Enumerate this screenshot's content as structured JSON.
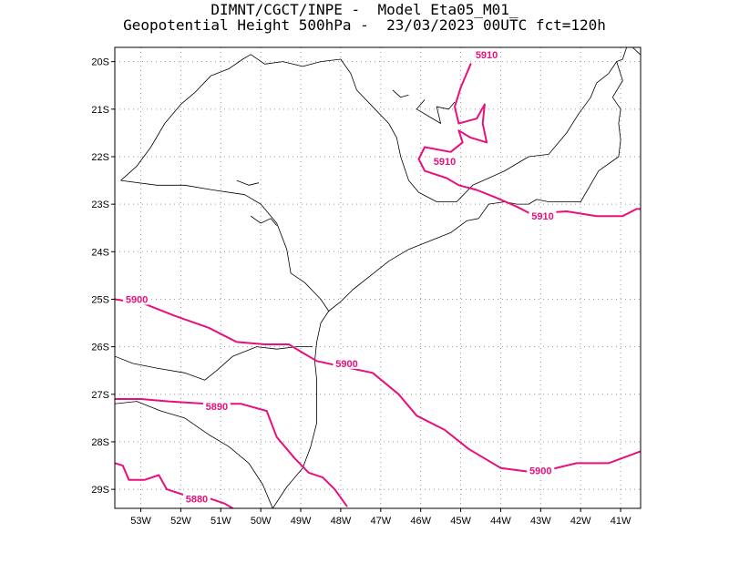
{
  "header": {
    "line1": "DIMNT/CGCT/INPE -  Model Eta05_M01_",
    "line2": "Geopotential Height 500hPa -  23/03/2023 00UTC fct=120h"
  },
  "map": {
    "lon_range": [
      -53.65,
      -40.5
    ],
    "lat_range": [
      -29.4,
      -19.7
    ],
    "lat_labels": [
      "20S",
      "21S",
      "22S",
      "23S",
      "24S",
      "25S",
      "26S",
      "27S",
      "28S",
      "29S"
    ],
    "lon_labels": [
      "53W",
      "52W",
      "51W",
      "50W",
      "49W",
      "48W",
      "47W",
      "46W",
      "45W",
      "44W",
      "43W",
      "42W",
      "41W"
    ],
    "gridlines": "dotted",
    "colors": {
      "contour": "#e8107a",
      "boundary": "#000000",
      "grid": "#9a9a9a"
    }
  },
  "contours": [
    {
      "id": "c5910-north",
      "value": 5910,
      "label": "5910",
      "lonlat": [
        [
          -44.75,
          -20.05
        ],
        [
          -45.0,
          -20.55
        ],
        [
          -45.15,
          -20.95
        ],
        [
          -45.05,
          -21.3
        ],
        [
          -44.6,
          -21.2
        ],
        [
          -44.4,
          -20.9
        ],
        [
          -44.45,
          -21.3
        ],
        [
          -44.35,
          -21.7
        ],
        [
          -44.75,
          -21.6
        ],
        [
          -45.05,
          -21.45
        ],
        [
          -44.95,
          -21.7
        ],
        [
          -45.25,
          -21.9
        ],
        [
          -45.9,
          -21.8
        ]
      ]
    },
    {
      "id": "c5910-south",
      "value": 5910,
      "label": "5910",
      "lonlat": [
        [
          -45.9,
          -21.8
        ],
        [
          -46.05,
          -22.05
        ],
        [
          -45.9,
          -22.3
        ],
        [
          -45.35,
          -22.45
        ],
        [
          -45.05,
          -22.6
        ],
        [
          -44.6,
          -22.7
        ],
        [
          -44.15,
          -22.85
        ],
        [
          -43.6,
          -23.05
        ],
        [
          -43.25,
          -23.2
        ],
        [
          -42.35,
          -23.15
        ],
        [
          -41.6,
          -23.25
        ],
        [
          -40.95,
          -23.25
        ],
        [
          -40.6,
          -23.1
        ],
        [
          -40.5,
          -23.1
        ]
      ]
    },
    {
      "id": "c5900-south",
      "value": 5900,
      "label": "5900",
      "lonlat": [
        [
          -53.65,
          -25.0
        ],
        [
          -52.9,
          -25.1
        ],
        [
          -52.15,
          -25.35
        ],
        [
          -51.3,
          -25.6
        ],
        [
          -50.6,
          -25.9
        ],
        [
          -49.9,
          -25.95
        ],
        [
          -49.3,
          -25.95
        ],
        [
          -49.0,
          -26.1
        ],
        [
          -48.6,
          -26.3
        ],
        [
          -48.05,
          -26.4
        ],
        [
          -47.2,
          -26.55
        ],
        [
          -46.55,
          -27.0
        ],
        [
          -46.1,
          -27.45
        ],
        [
          -45.4,
          -27.75
        ],
        [
          -44.8,
          -28.15
        ],
        [
          -44.0,
          -28.55
        ],
        [
          -43.1,
          -28.65
        ],
        [
          -42.1,
          -28.45
        ],
        [
          -41.3,
          -28.45
        ],
        [
          -40.5,
          -28.2
        ]
      ]
    },
    {
      "id": "c5890",
      "value": 5890,
      "label": "5890",
      "lonlat": [
        [
          -53.65,
          -27.1
        ],
        [
          -53.0,
          -27.1
        ],
        [
          -52.3,
          -27.15
        ],
        [
          -51.35,
          -27.2
        ],
        [
          -50.5,
          -27.2
        ],
        [
          -49.85,
          -27.35
        ],
        [
          -49.6,
          -27.9
        ],
        [
          -49.15,
          -28.35
        ],
        [
          -48.8,
          -28.65
        ],
        [
          -48.45,
          -28.75
        ],
        [
          -48.15,
          -29.0
        ],
        [
          -47.85,
          -29.35
        ]
      ]
    },
    {
      "id": "c5880",
      "value": 5880,
      "label": "5880",
      "lonlat": [
        [
          -53.65,
          -28.45
        ],
        [
          -53.45,
          -28.5
        ],
        [
          -53.3,
          -28.8
        ],
        [
          -52.9,
          -28.8
        ],
        [
          -52.55,
          -28.7
        ],
        [
          -52.35,
          -29.0
        ],
        [
          -51.8,
          -29.15
        ],
        [
          -51.25,
          -29.2
        ],
        [
          -50.9,
          -29.3
        ],
        [
          -50.7,
          -29.4
        ]
      ]
    }
  ],
  "contour_labels": [
    {
      "text": "5910",
      "lon": -44.35,
      "lat": -19.85
    },
    {
      "text": "5910",
      "lon": -45.4,
      "lat": -22.1
    },
    {
      "text": "5910",
      "lon": -42.95,
      "lat": -23.25
    },
    {
      "text": "5900",
      "lon": -53.1,
      "lat": -25.0
    },
    {
      "text": "5900",
      "lon": -47.85,
      "lat": -26.35
    },
    {
      "text": "5900",
      "lon": -43.0,
      "lat": -28.6
    },
    {
      "text": "5890",
      "lon": -51.1,
      "lat": -27.25
    },
    {
      "text": "5880",
      "lon": -51.6,
      "lat": -29.2
    }
  ],
  "boundaries": [
    {
      "id": "sp-mg-west",
      "lonlat": [
        [
          -53.5,
          -22.5
        ],
        [
          -53.1,
          -22.2
        ],
        [
          -52.75,
          -21.8
        ],
        [
          -52.4,
          -21.3
        ],
        [
          -52.0,
          -20.9
        ],
        [
          -51.65,
          -20.65
        ],
        [
          -51.25,
          -20.3
        ],
        [
          -50.8,
          -20.15
        ],
        [
          -50.45,
          -19.95
        ],
        [
          -50.25,
          -19.85
        ],
        [
          -49.9,
          -20.05
        ],
        [
          -49.45,
          -20.0
        ],
        [
          -48.95,
          -20.1
        ],
        [
          -48.5,
          -20.0
        ],
        [
          -48.0,
          -19.95
        ],
        [
          -47.75,
          -20.25
        ],
        [
          -47.6,
          -20.6
        ],
        [
          -47.2,
          -20.95
        ],
        [
          -46.8,
          -21.3
        ],
        [
          -46.6,
          -21.6
        ],
        [
          -46.5,
          -22.0
        ],
        [
          -46.3,
          -22.5
        ],
        [
          -46.05,
          -22.75
        ],
        [
          -45.6,
          -22.95
        ],
        [
          -45.1,
          -22.95
        ]
      ]
    },
    {
      "id": "mg-rj",
      "lonlat": [
        [
          -45.1,
          -22.95
        ],
        [
          -44.7,
          -22.6
        ],
        [
          -44.3,
          -22.45
        ],
        [
          -43.9,
          -22.3
        ],
        [
          -43.3,
          -22.0
        ],
        [
          -42.8,
          -21.95
        ],
        [
          -42.35,
          -21.5
        ],
        [
          -42.05,
          -21.1
        ],
        [
          -41.75,
          -20.75
        ],
        [
          -41.6,
          -20.45
        ],
        [
          -41.3,
          -20.25
        ],
        [
          -41.1,
          -20.0
        ]
      ]
    },
    {
      "id": "es-border",
      "lonlat": [
        [
          -41.1,
          -20.0
        ],
        [
          -40.95,
          -20.4
        ],
        [
          -41.2,
          -20.75
        ],
        [
          -41.0,
          -21.0
        ],
        [
          -41.05,
          -21.3
        ]
      ]
    },
    {
      "id": "es-mg-north",
      "lonlat": [
        [
          -40.85,
          -19.7
        ],
        [
          -40.95,
          -19.95
        ],
        [
          -41.1,
          -20.0
        ]
      ]
    },
    {
      "id": "mg-ba",
      "lonlat": [
        [
          -40.7,
          -19.7
        ],
        [
          -40.45,
          -19.9
        ]
      ]
    },
    {
      "id": "rj-coast",
      "lonlat": [
        [
          -41.05,
          -21.3
        ],
        [
          -41.0,
          -21.65
        ],
        [
          -41.05,
          -22.0
        ],
        [
          -41.55,
          -22.3
        ],
        [
          -42.0,
          -22.95
        ],
        [
          -42.8,
          -22.95
        ],
        [
          -43.1,
          -22.9
        ],
        [
          -43.3,
          -23.0
        ],
        [
          -43.6,
          -23.0
        ],
        [
          -43.9,
          -22.95
        ],
        [
          -44.3,
          -23.0
        ],
        [
          -44.55,
          -23.3
        ]
      ]
    },
    {
      "id": "sp-coast",
      "lonlat": [
        [
          -44.55,
          -23.3
        ],
        [
          -44.85,
          -23.35
        ],
        [
          -45.25,
          -23.6
        ],
        [
          -45.7,
          -23.75
        ],
        [
          -46.3,
          -23.95
        ],
        [
          -46.8,
          -24.2
        ],
        [
          -47.25,
          -24.5
        ],
        [
          -47.7,
          -24.8
        ],
        [
          -48.0,
          -25.05
        ],
        [
          -48.3,
          -25.25
        ],
        [
          -48.5,
          -25.5
        ],
        [
          -48.6,
          -25.9
        ],
        [
          -48.65,
          -26.3
        ],
        [
          -48.6,
          -26.7
        ],
        [
          -48.6,
          -27.1
        ],
        [
          -48.6,
          -27.6
        ],
        [
          -48.75,
          -28.1
        ],
        [
          -48.95,
          -28.55
        ],
        [
          -49.35,
          -28.95
        ],
        [
          -49.7,
          -29.4
        ]
      ]
    },
    {
      "id": "sp-pr",
      "lonlat": [
        [
          -53.5,
          -22.5
        ],
        [
          -52.6,
          -22.6
        ],
        [
          -51.9,
          -22.6
        ],
        [
          -51.2,
          -22.7
        ],
        [
          -50.4,
          -22.8
        ],
        [
          -50.0,
          -23.0
        ],
        [
          -49.6,
          -23.4
        ],
        [
          -49.35,
          -23.95
        ],
        [
          -49.25,
          -24.45
        ],
        [
          -48.9,
          -24.65
        ],
        [
          -48.5,
          -25.0
        ],
        [
          -48.3,
          -25.25
        ]
      ]
    },
    {
      "id": "pr-sc",
      "lonlat": [
        [
          -53.65,
          -26.2
        ],
        [
          -53.2,
          -26.35
        ],
        [
          -52.6,
          -26.45
        ],
        [
          -51.9,
          -26.55
        ],
        [
          -51.4,
          -26.7
        ],
        [
          -51.1,
          -26.5
        ],
        [
          -50.7,
          -26.2
        ],
        [
          -50.1,
          -26.0
        ],
        [
          -49.6,
          -26.05
        ],
        [
          -49.1,
          -26.0
        ],
        [
          -48.7,
          -26.0
        ]
      ]
    },
    {
      "id": "sc-rs",
      "lonlat": [
        [
          -53.65,
          -27.2
        ],
        [
          -53.1,
          -27.15
        ],
        [
          -52.5,
          -27.35
        ],
        [
          -51.9,
          -27.5
        ],
        [
          -51.3,
          -27.85
        ],
        [
          -50.8,
          -28.1
        ],
        [
          -50.3,
          -28.45
        ],
        [
          -49.95,
          -28.9
        ],
        [
          -49.75,
          -29.3
        ],
        [
          -49.7,
          -29.4
        ]
      ]
    },
    {
      "id": "furnas-lake",
      "lonlat": [
        [
          -45.9,
          -20.8
        ],
        [
          -46.1,
          -21.0
        ],
        [
          -45.8,
          -21.15
        ],
        [
          -45.5,
          -21.3
        ],
        [
          -45.6,
          -20.95
        ],
        [
          -45.3,
          -21.0
        ],
        [
          -45.15,
          -20.85
        ]
      ]
    },
    {
      "id": "lake-west",
      "lonlat": [
        [
          -50.6,
          -22.5
        ],
        [
          -50.3,
          -22.6
        ],
        [
          -50.05,
          -22.55
        ]
      ]
    },
    {
      "id": "reservoir",
      "lonlat": [
        [
          -50.25,
          -23.25
        ],
        [
          -50.0,
          -23.4
        ],
        [
          -49.75,
          -23.3
        ],
        [
          -49.6,
          -23.45
        ]
      ]
    },
    {
      "id": "north-lake",
      "lonlat": [
        [
          -46.7,
          -20.6
        ],
        [
          -46.5,
          -20.75
        ],
        [
          -46.3,
          -20.7
        ]
      ]
    }
  ]
}
